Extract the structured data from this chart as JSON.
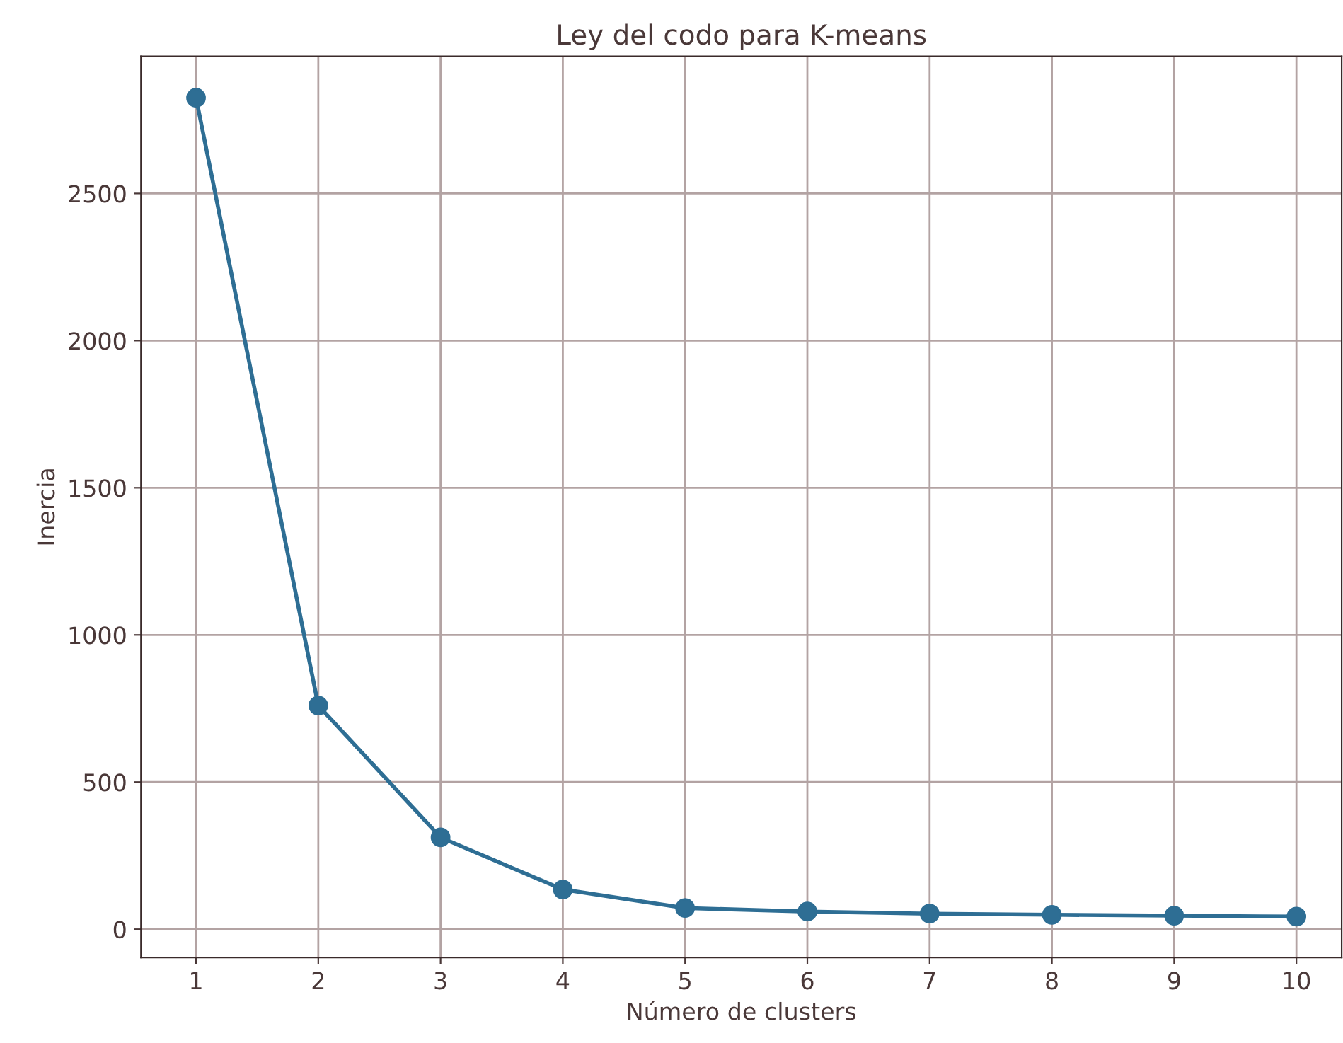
{
  "chart_data": {
    "type": "line",
    "title": "Ley del codo para K-means",
    "xlabel": "Número de clusters",
    "ylabel": "Inercia",
    "x": [
      1,
      2,
      3,
      4,
      5,
      6,
      7,
      8,
      9,
      10
    ],
    "series": [
      {
        "color": "#2e6e94",
        "values": [
          2825,
          760,
          312,
          135,
          72,
          60,
          53,
          49,
          46,
          43
        ]
      }
    ],
    "xlim": [
      0.55,
      10.37
    ],
    "xticks": [
      1,
      2,
      3,
      4,
      5,
      6,
      7,
      8,
      9,
      10
    ],
    "ylim": [
      -96,
      2966
    ],
    "yticks": [
      0,
      500,
      1000,
      1500,
      2000,
      2500
    ],
    "grid": true,
    "marker": "circle",
    "line_style": "solid"
  }
}
